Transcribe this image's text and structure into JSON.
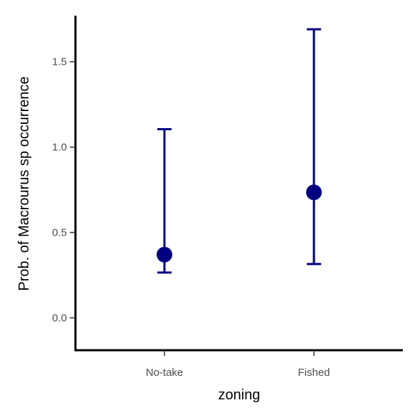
{
  "chart_data": {
    "type": "scatter",
    "title": "",
    "xlabel": "zoning",
    "ylabel": "Prob. of  Macrourus sp  occurrence",
    "categories": [
      "No-take",
      "Fished"
    ],
    "series": [
      {
        "values": [
          0.37,
          0.735
        ],
        "lower": [
          0.265,
          0.315
        ],
        "upper": [
          1.105,
          1.69
        ]
      }
    ],
    "yticks": [
      0.0,
      0.5,
      1.0,
      1.5
    ],
    "ytick_labels": [
      "0.0",
      "0.5",
      "1.0",
      "1.5"
    ],
    "ylim": [
      -0.19,
      1.77
    ],
    "grid": false,
    "legend": "none",
    "colors": {
      "series": "#000080",
      "axis": "#000000",
      "tick_text": "#4d4d4d"
    }
  }
}
